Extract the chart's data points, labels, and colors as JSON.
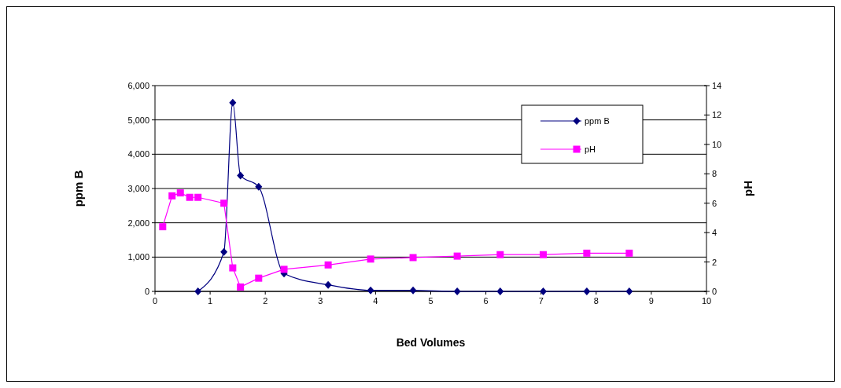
{
  "chart_data": {
    "type": "line",
    "xlabel": "Bed Volumes",
    "ylabel": "ppm B",
    "y2label": "pH",
    "xlim": [
      0,
      10
    ],
    "xticks": [
      0,
      1,
      2,
      3,
      4,
      5,
      6,
      7,
      8,
      9,
      10
    ],
    "ylim": [
      0,
      6000
    ],
    "yticks": [
      {
        "value": 0,
        "label": "0"
      },
      {
        "value": 1000,
        "label": "1,000"
      },
      {
        "value": 2000,
        "label": "2,000"
      },
      {
        "value": 3000,
        "label": "3,000"
      },
      {
        "value": 4000,
        "label": "4,000"
      },
      {
        "value": 5000,
        "label": "5,000"
      },
      {
        "value": 6000,
        "label": "6,000"
      }
    ],
    "y2lim": [
      0,
      14
    ],
    "y2ticks": [
      0,
      2,
      4,
      6,
      8,
      10,
      12,
      14
    ],
    "grid": "y",
    "legend": "top right",
    "series": [
      {
        "name": "ppm B",
        "color": "#000080",
        "marker": "diamond",
        "x": [
          0.78,
          1.25,
          1.41,
          1.55,
          1.88,
          2.34,
          3.14,
          3.91,
          4.68,
          5.48,
          6.26,
          7.04,
          7.83,
          8.6
        ],
        "values": [
          0,
          1150,
          5500,
          3380,
          3050,
          520,
          190,
          30,
          30,
          0,
          0,
          0,
          0,
          0
        ]
      },
      {
        "name": "pH",
        "color": "#ff00ff",
        "marker": "square",
        "axis": "y2",
        "x": [
          0.14,
          0.31,
          0.46,
          0.63,
          0.78,
          1.25,
          1.41,
          1.55,
          1.88,
          2.34,
          3.14,
          3.91,
          4.68,
          5.48,
          6.26,
          7.04,
          7.83,
          8.6
        ],
        "values": [
          4.4,
          6.5,
          6.7,
          6.4,
          6.4,
          6.0,
          1.6,
          0.3,
          0.9,
          1.5,
          1.8,
          2.2,
          2.3,
          2.4,
          2.5,
          2.5,
          2.6,
          2.6
        ]
      }
    ]
  }
}
